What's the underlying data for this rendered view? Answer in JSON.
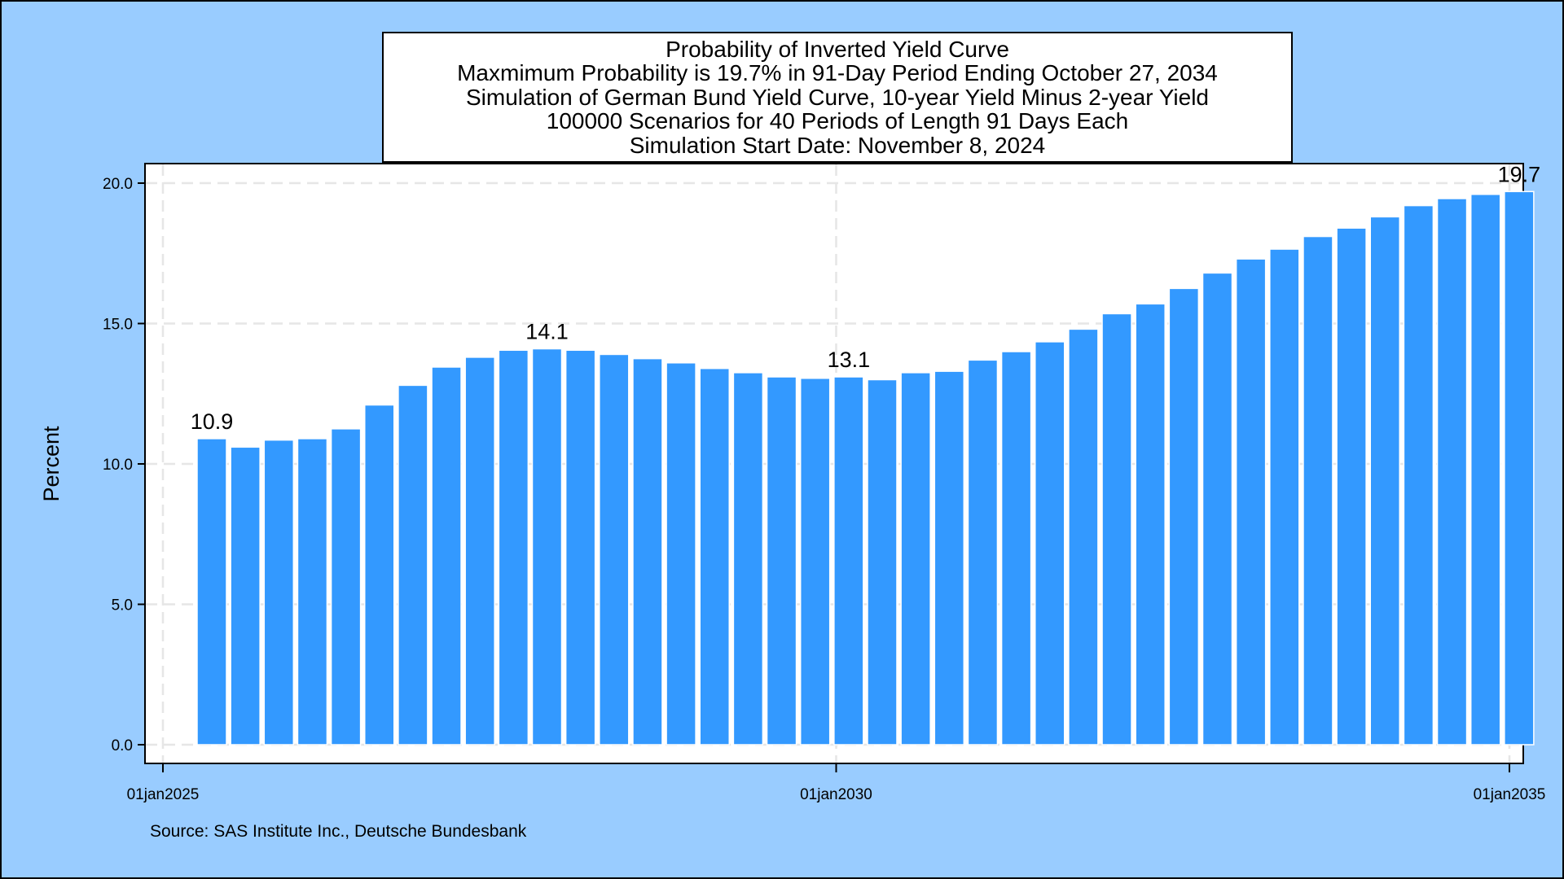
{
  "page": {
    "background": "#99ccff",
    "plot_background": "#ffffff",
    "bar_color": "#3399ff"
  },
  "chart_data": {
    "type": "bar",
    "title_lines": [
      "Probability of Inverted Yield Curve",
      "Maxmimum Probability is 19.7% in 91-Day Period Ending October 27, 2034",
      "Simulation of German Bund Yield Curve, 10-year Yield Minus 2-year Yield",
      "100000 Scenarios for 40 Periods of Length 91 Days Each",
      "Simulation Start Date: November 8, 2024"
    ],
    "ylabel": "Percent",
    "xlabel": "",
    "ylim": [
      0,
      20
    ],
    "yticks": [
      0,
      5,
      10,
      15,
      20
    ],
    "ytick_labels": [
      "0.0",
      "5.0",
      "10.0",
      "15.0",
      "20.0"
    ],
    "xlim": [
      "2025-01-01",
      "2035-01-01"
    ],
    "xticks": [
      "2025-01-01",
      "2030-01-01",
      "2035-01-01"
    ],
    "xtick_labels": [
      "01jan2025",
      "01jan2030",
      "01jan2035"
    ],
    "grid": true,
    "legend": "none",
    "values": [
      10.9,
      10.6,
      10.85,
      10.9,
      11.25,
      12.1,
      12.8,
      13.45,
      13.8,
      14.05,
      14.1,
      14.05,
      13.9,
      13.75,
      13.6,
      13.4,
      13.25,
      13.1,
      13.05,
      13.1,
      13.0,
      13.25,
      13.3,
      13.7,
      14.0,
      14.35,
      14.8,
      15.35,
      15.7,
      16.25,
      16.8,
      17.3,
      17.65,
      18.1,
      18.4,
      18.8,
      19.2,
      19.45,
      19.6,
      19.7
    ],
    "data_labels": [
      {
        "period": 1,
        "text": "10.9"
      },
      {
        "period": 11,
        "text": "14.1"
      },
      {
        "period": 20,
        "text": "13.1"
      },
      {
        "period": 40,
        "text": "19.7"
      }
    ],
    "source": "Source: SAS Institute Inc., Deutsche Bundesbank"
  }
}
